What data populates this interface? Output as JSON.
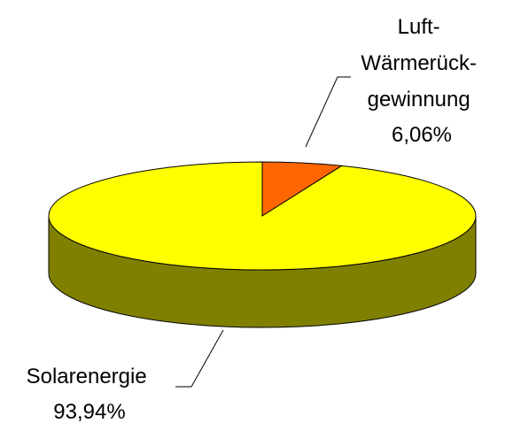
{
  "chart_data": {
    "type": "pie3d",
    "categories": [
      [
        "Luft-",
        "Wärmerück-",
        "gewinnung"
      ],
      [
        "Solarenergie"
      ]
    ],
    "values": [
      6.06,
      93.94
    ],
    "value_labels": [
      "6,06%",
      "93,94%"
    ],
    "colors": [
      "#ff6600",
      "#ffff00"
    ],
    "side_colors": [
      "#803300",
      "#808000"
    ]
  }
}
